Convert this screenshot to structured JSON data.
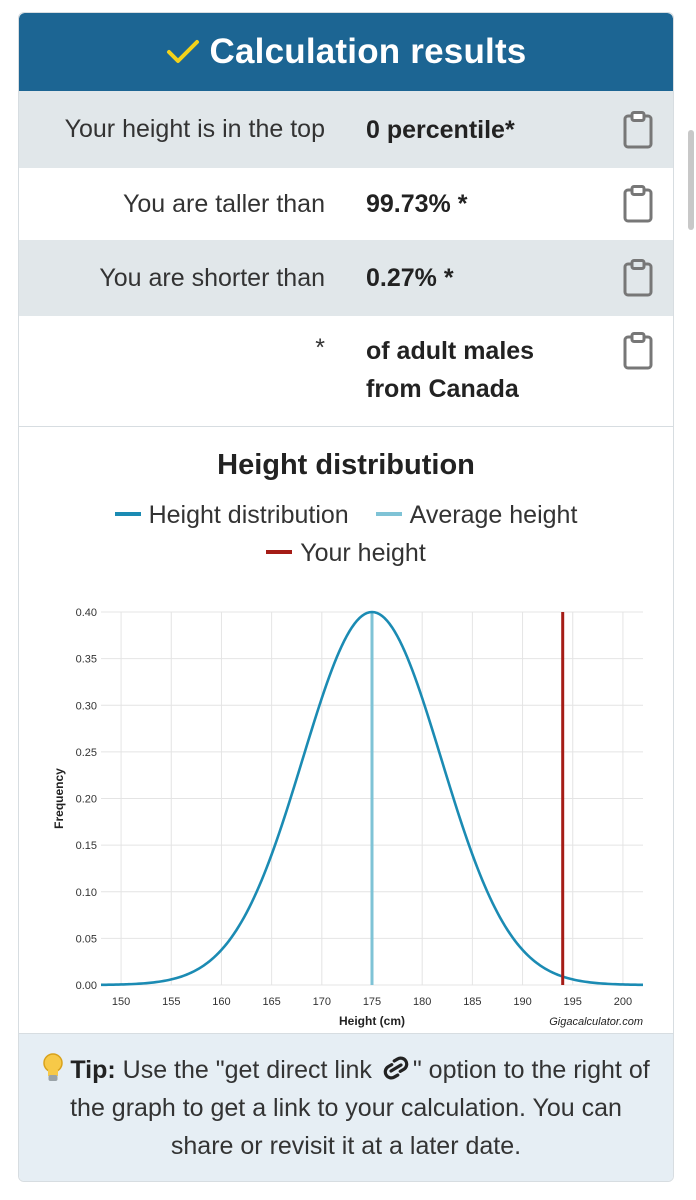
{
  "header": {
    "title": "Calculation results",
    "icon": "check-icon"
  },
  "results": [
    {
      "label": "Your height is in the top",
      "value": "0 percentile*"
    },
    {
      "label": "You are taller than",
      "value": "99.73% *"
    },
    {
      "label": "You are shorter than",
      "value": "0.27% *"
    },
    {
      "label": "*",
      "value_line1": "of adult males",
      "value_line2": "from Canada"
    }
  ],
  "chart_title": "Height distribution",
  "legend": [
    {
      "label": "Height distribution",
      "color": "#1b8bb3"
    },
    {
      "label": "Average height",
      "color": "#7fc3d6"
    },
    {
      "label": "Your height",
      "color": "#a51c16"
    }
  ],
  "chart_data": {
    "type": "line",
    "xlabel": "Height (cm)",
    "ylabel": "Frequency",
    "credit": "Gigacalculator.com",
    "xlim": [
      148,
      202
    ],
    "ylim": [
      0,
      0.4
    ],
    "x_ticks": [
      150,
      155,
      160,
      165,
      170,
      175,
      180,
      185,
      190,
      195,
      200
    ],
    "y_ticks": [
      0.0,
      0.05,
      0.1,
      0.15,
      0.2,
      0.25,
      0.3,
      0.35,
      0.4
    ],
    "grid": true,
    "distribution": {
      "name": "Height distribution",
      "mean": 175,
      "sd": 6.9,
      "peak": 0.4
    },
    "average_height": 175,
    "your_height": 194
  },
  "tip": {
    "label": "Tip:",
    "text1": " Use the \"get direct link ",
    "text2": "\" option to the right of the graph to get a link to your calculation. You can share or revisit it at a later date."
  },
  "colors": {
    "header_bg": "#1c6593",
    "row_shade": "#e1e7ea",
    "tip_bg": "#e6eef4"
  }
}
